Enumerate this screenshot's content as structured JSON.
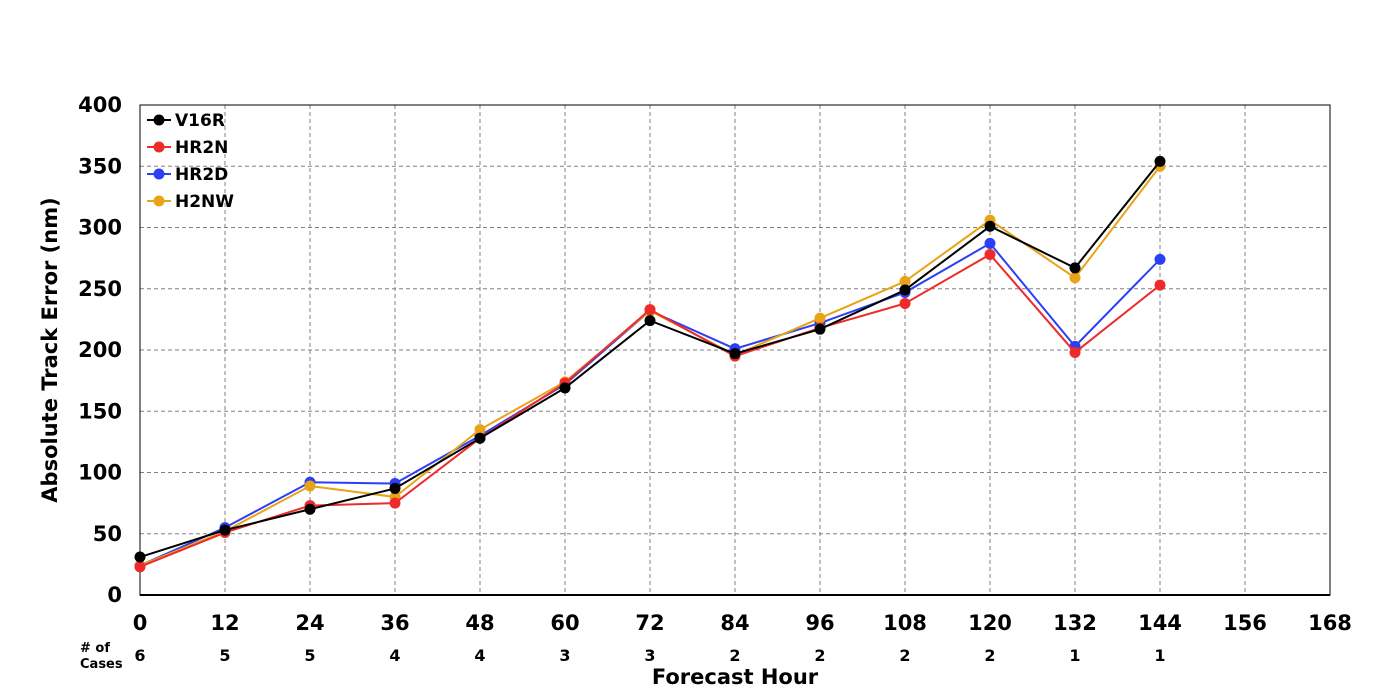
{
  "chart_data": {
    "type": "line",
    "xlabel": "Forecast Hour",
    "ylabel": "Absolute Track Error (nm)",
    "xlim": [
      0,
      168
    ],
    "ylim": [
      0,
      400
    ],
    "x_ticks": [
      0,
      12,
      24,
      36,
      48,
      60,
      72,
      84,
      96,
      108,
      120,
      132,
      144,
      156,
      168
    ],
    "y_ticks": [
      0,
      50,
      100,
      150,
      200,
      250,
      300,
      350,
      400
    ],
    "grid": true,
    "legend_position": "top-left",
    "cases_label": [
      "# of",
      "Cases"
    ],
    "cases": [
      6,
      5,
      5,
      4,
      4,
      3,
      3,
      2,
      2,
      2,
      2,
      1,
      1
    ],
    "x": [
      0,
      12,
      24,
      36,
      48,
      60,
      72,
      84,
      96,
      108,
      120,
      132,
      144
    ],
    "series": [
      {
        "name": "V16R",
        "color": "#000000",
        "values": [
          31,
          53,
          70,
          87,
          128,
          169,
          224,
          197,
          217,
          249,
          301,
          267,
          354
        ]
      },
      {
        "name": "HR2N",
        "color": "#ee2b2b",
        "values": [
          23,
          51,
          73,
          75,
          128,
          173,
          233,
          195,
          218,
          238,
          278,
          198,
          253
        ]
      },
      {
        "name": "HR2D",
        "color": "#2b3ff5",
        "values": [
          24,
          55,
          92,
          91,
          130,
          172,
          232,
          201,
          222,
          247,
          287,
          203,
          274
        ]
      },
      {
        "name": "H2NW",
        "color": "#e8a317",
        "values": [
          24,
          52,
          89,
          80,
          135,
          174,
          232,
          196,
          226,
          256,
          306,
          259,
          350
        ]
      }
    ]
  }
}
